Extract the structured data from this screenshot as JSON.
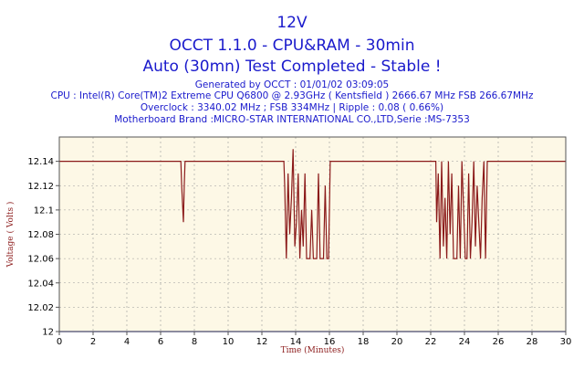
{
  "chart_data": {
    "type": "line",
    "title": "12V",
    "subtitle_lines": [
      "OCCT 1.1.0 - CPU&RAM - 30min",
      "Auto (30mn) Test Completed - Stable !"
    ],
    "info_lines": [
      "Generated by OCCT : 01/01/02 03:09:05",
      "CPU : Intel(R) Core(TM)2 Extreme CPU Q6800  @ 2.93GHz ( Kentsfield ) 2666.67 MHz FSB 266.67MHz",
      "Overclock : 3340.02 MHz ; FSB 334MHz | Ripple : 0.08 ( 0.66%)",
      "Motherboard Brand :MICRO-STAR INTERNATIONAL CO.,LTD,Serie :MS-7353"
    ],
    "xlabel": "Time (Minutes)",
    "ylabel": "Voltage ( Volts )",
    "xlim": [
      0,
      30
    ],
    "ylim": [
      12.0,
      12.16
    ],
    "xticks": [
      0,
      2,
      4,
      6,
      8,
      10,
      12,
      14,
      16,
      18,
      20,
      22,
      24,
      26,
      28,
      30
    ],
    "yticks": [
      12,
      12.02,
      12.04,
      12.06,
      12.08,
      12.1,
      12.12,
      12.14
    ],
    "ytick_labels": [
      "12",
      "12.02",
      "12.04",
      "12.06",
      "12.08",
      "12.1",
      "12.12",
      "12.14"
    ],
    "grid": true,
    "colors": {
      "line": "#8b1a1a",
      "reference": "#1a1acc",
      "plot_bg": "#fdf8e6",
      "grid": "#999999",
      "title": "#1a1acc"
    },
    "series": [
      {
        "x": [
          0,
          7.2,
          7.25,
          7.35,
          7.4,
          7.45,
          13.3,
          13.35,
          13.45,
          13.55,
          13.65,
          13.75,
          13.85,
          13.95,
          14.05,
          14.15,
          14.25,
          14.35,
          14.45,
          14.55,
          14.65,
          14.75,
          14.85,
          14.95,
          15.05,
          15.15,
          15.25,
          15.35,
          15.45,
          15.55,
          15.65,
          15.75,
          15.85,
          15.95,
          16.05,
          16.15,
          22.3,
          22.35,
          22.45,
          22.55,
          22.65,
          22.75,
          22.85,
          22.95,
          23.05,
          23.15,
          23.25,
          23.35,
          23.45,
          23.55,
          23.65,
          23.75,
          23.85,
          23.95,
          24.05,
          24.15,
          24.25,
          24.35,
          24.45,
          24.55,
          24.65,
          24.75,
          24.85,
          24.95,
          25.05,
          25.15,
          25.25,
          25.35,
          30
        ],
        "values": [
          12.14,
          12.14,
          12.12,
          12.09,
          12.12,
          12.14,
          12.14,
          12.12,
          12.06,
          12.13,
          12.08,
          12.11,
          12.15,
          12.07,
          12.09,
          12.13,
          12.06,
          12.1,
          12.07,
          12.13,
          12.06,
          12.06,
          12.06,
          12.1,
          12.06,
          12.06,
          12.06,
          12.13,
          12.06,
          12.06,
          12.06,
          12.12,
          12.06,
          12.06,
          12.14,
          12.14,
          12.14,
          12.09,
          12.13,
          12.06,
          12.14,
          12.07,
          12.11,
          12.06,
          12.14,
          12.08,
          12.13,
          12.06,
          12.06,
          12.06,
          12.12,
          12.06,
          12.14,
          12.1,
          12.06,
          12.06,
          12.13,
          12.06,
          12.09,
          12.14,
          12.07,
          12.12,
          12.09,
          12.06,
          12.11,
          12.14,
          12.06,
          12.14,
          12.14
        ]
      }
    ],
    "reference_line": {
      "y": 12
    }
  }
}
